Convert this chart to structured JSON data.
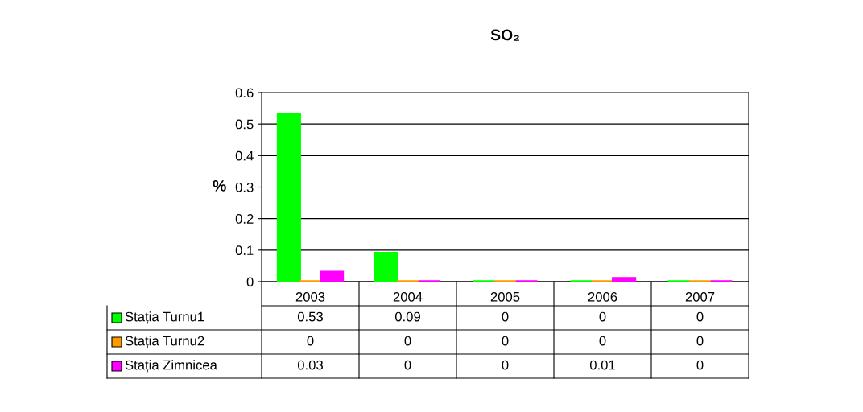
{
  "chart_data": {
    "type": "bar",
    "title": "SO₂",
    "ylabel": "%",
    "categories": [
      "2003",
      "2004",
      "2005",
      "2006",
      "2007"
    ],
    "series": [
      {
        "name": "Stația Turnu1",
        "color": "#00ff00",
        "values": [
          0.53,
          0.09,
          0,
          0,
          0
        ]
      },
      {
        "name": "Stația Turnu2",
        "color": "#ff9900",
        "values": [
          0,
          0,
          0,
          0,
          0
        ]
      },
      {
        "name": "Stația Zimnicea",
        "color": "#ff00ff",
        "values": [
          0.03,
          0,
          0,
          0.01,
          0
        ]
      }
    ],
    "ylim": [
      0,
      0.6
    ],
    "yticks": [
      0,
      0.1,
      0.2,
      0.3,
      0.4,
      0.5,
      0.6
    ],
    "grid": "y",
    "data_labels": true,
    "legend": "bottom"
  }
}
